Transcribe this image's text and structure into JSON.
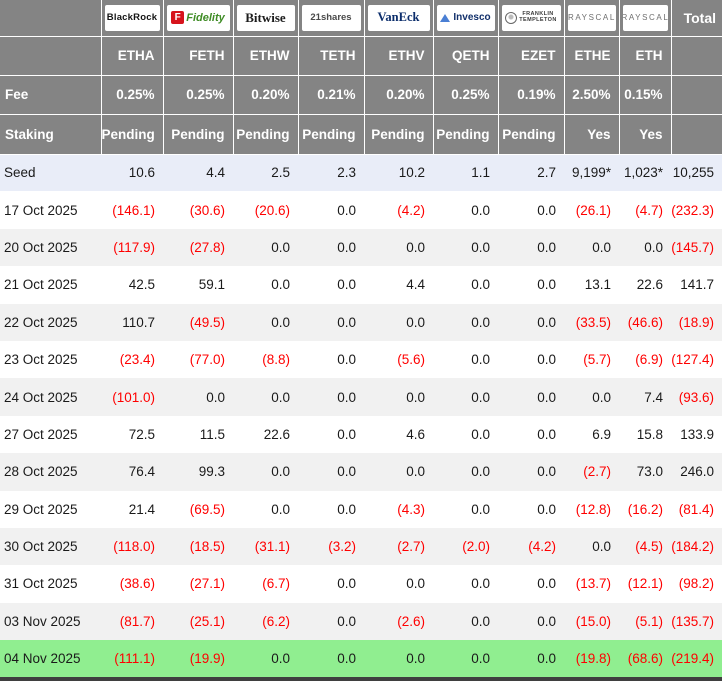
{
  "labels": {
    "fee": "Fee",
    "staking": "Staking",
    "total": "Total"
  },
  "providers": [
    {
      "ticker": "ETHA",
      "fee": "0.25%",
      "staking": "Pending",
      "logo": {
        "type": "blackrock",
        "text": "BlackRock"
      }
    },
    {
      "ticker": "FETH",
      "fee": "0.25%",
      "staking": "Pending",
      "logo": {
        "type": "fidelity",
        "badge": "F",
        "text": "Fidelity"
      }
    },
    {
      "ticker": "ETHW",
      "fee": "0.20%",
      "staking": "Pending",
      "logo": {
        "type": "bitwise",
        "text": "Bitwise"
      }
    },
    {
      "ticker": "TETH",
      "fee": "0.21%",
      "staking": "Pending",
      "logo": {
        "type": "21shares",
        "text": "21shares"
      }
    },
    {
      "ticker": "ETHV",
      "fee": "0.20%",
      "staking": "Pending",
      "logo": {
        "type": "vaneck",
        "text": "VanEck"
      }
    },
    {
      "ticker": "QETH",
      "fee": "0.25%",
      "staking": "Pending",
      "logo": {
        "type": "invesco",
        "text": "Invesco"
      }
    },
    {
      "ticker": "EZET",
      "fee": "0.19%",
      "staking": "Pending",
      "logo": {
        "type": "franklin",
        "lines": [
          "FRANKLIN",
          "TEMPLETON"
        ]
      }
    },
    {
      "ticker": "ETHE",
      "fee": "2.50%",
      "staking": "Yes",
      "logo": {
        "type": "grayscale",
        "text": "GRAYSCALE"
      }
    },
    {
      "ticker": "ETH",
      "fee": "0.15%",
      "staking": "Yes",
      "logo": {
        "type": "grayscale",
        "text": "GRAYSCALE"
      }
    }
  ],
  "chart_data": {
    "type": "table",
    "columns": [
      "",
      "ETHA",
      "FETH",
      "ETHW",
      "TETH",
      "ETHV",
      "QETH",
      "EZET",
      "ETHE",
      "ETH",
      "Total"
    ],
    "rows": [
      {
        "label": "Seed",
        "values": [
          "10.6",
          "4.4",
          "2.5",
          "2.3",
          "10.2",
          "1.1",
          "2.7",
          "9,199*",
          "1,023*"
        ],
        "total": "10,255",
        "highlight": "seed"
      },
      {
        "label": "17 Oct 2025",
        "values": [
          "(146.1)",
          "(30.6)",
          "(20.6)",
          "0.0",
          "(4.2)",
          "0.0",
          "0.0",
          "(26.1)",
          "(4.7)"
        ],
        "total": "(232.3)"
      },
      {
        "label": "20 Oct 2025",
        "values": [
          "(117.9)",
          "(27.8)",
          "0.0",
          "0.0",
          "0.0",
          "0.0",
          "0.0",
          "0.0",
          "0.0"
        ],
        "total": "(145.7)"
      },
      {
        "label": "21 Oct 2025",
        "values": [
          "42.5",
          "59.1",
          "0.0",
          "0.0",
          "4.4",
          "0.0",
          "0.0",
          "13.1",
          "22.6"
        ],
        "total": "141.7"
      },
      {
        "label": "22 Oct 2025",
        "values": [
          "110.7",
          "(49.5)",
          "0.0",
          "0.0",
          "0.0",
          "0.0",
          "0.0",
          "(33.5)",
          "(46.6)"
        ],
        "total": "(18.9)"
      },
      {
        "label": "23 Oct 2025",
        "values": [
          "(23.4)",
          "(77.0)",
          "(8.8)",
          "0.0",
          "(5.6)",
          "0.0",
          "0.0",
          "(5.7)",
          "(6.9)"
        ],
        "total": "(127.4)"
      },
      {
        "label": "24 Oct 2025",
        "values": [
          "(101.0)",
          "0.0",
          "0.0",
          "0.0",
          "0.0",
          "0.0",
          "0.0",
          "0.0",
          "7.4"
        ],
        "total": "(93.6)"
      },
      {
        "label": "27 Oct 2025",
        "values": [
          "72.5",
          "11.5",
          "22.6",
          "0.0",
          "4.6",
          "0.0",
          "0.0",
          "6.9",
          "15.8"
        ],
        "total": "133.9"
      },
      {
        "label": "28 Oct 2025",
        "values": [
          "76.4",
          "99.3",
          "0.0",
          "0.0",
          "0.0",
          "0.0",
          "0.0",
          "(2.7)",
          "73.0"
        ],
        "total": "246.0"
      },
      {
        "label": "29 Oct 2025",
        "values": [
          "21.4",
          "(69.5)",
          "0.0",
          "0.0",
          "(4.3)",
          "0.0",
          "0.0",
          "(12.8)",
          "(16.2)"
        ],
        "total": "(81.4)"
      },
      {
        "label": "30 Oct 2025",
        "values": [
          "(118.0)",
          "(18.5)",
          "(31.1)",
          "(3.2)",
          "(2.7)",
          "(2.0)",
          "(4.2)",
          "0.0",
          "(4.5)"
        ],
        "total": "(184.2)"
      },
      {
        "label": "31 Oct 2025",
        "values": [
          "(38.6)",
          "(27.1)",
          "(6.7)",
          "0.0",
          "0.0",
          "0.0",
          "0.0",
          "(13.7)",
          "(12.1)"
        ],
        "total": "(98.2)"
      },
      {
        "label": "03 Nov 2025",
        "values": [
          "(81.7)",
          "(25.1)",
          "(6.2)",
          "0.0",
          "(2.6)",
          "0.0",
          "0.0",
          "(15.0)",
          "(5.1)"
        ],
        "total": "(135.7)"
      },
      {
        "label": "04 Nov 2025",
        "values": [
          "(111.1)",
          "(19.9)",
          "0.0",
          "0.0",
          "0.0",
          "0.0",
          "0.0",
          "(19.8)",
          "(68.6)"
        ],
        "total": "(219.4)",
        "highlight": "latest"
      }
    ]
  },
  "colors": {
    "header_bg": "#848484",
    "seed_row_bg": "#e9edf8",
    "stripe_bg": "#f1f1f1",
    "latest_row_bg": "#90ee90",
    "negative": "#ff0000",
    "fidelity_red": "#d6131c",
    "fidelity_green": "#3f8c25",
    "vaneck_navy": "#0b2d6b",
    "invesco_navy": "#12306b",
    "bottom_bar": "#3f3f3f"
  }
}
